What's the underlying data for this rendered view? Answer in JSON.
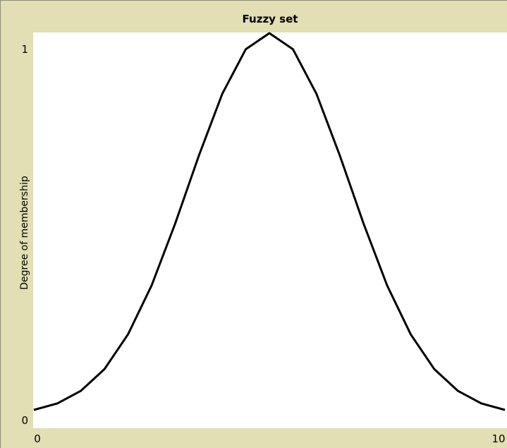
{
  "chart_data": {
    "type": "line",
    "title": "Fuzzy set",
    "y_label": "Degree of membership",
    "x": [
      0,
      0.5,
      1,
      1.5,
      2,
      2.5,
      3,
      3.5,
      4,
      4.5,
      5,
      5.5,
      6,
      6.5,
      7,
      7.5,
      8,
      8.5,
      9,
      9.5,
      10
    ],
    "series": [
      {
        "color": "#000000",
        "values": [
          0.013,
          0.03,
          0.063,
          0.12,
          0.211,
          0.339,
          0.501,
          0.678,
          0.841,
          0.958,
          1,
          0.958,
          0.841,
          0.678,
          0.501,
          0.339,
          0.211,
          0.12,
          0.063,
          0.03,
          0.013
        ]
      }
    ],
    "xlim": [
      0,
      10
    ],
    "xticks": [
      0,
      10
    ],
    "ylim": [
      0,
      1
    ],
    "yticks": [
      0,
      1
    ]
  }
}
